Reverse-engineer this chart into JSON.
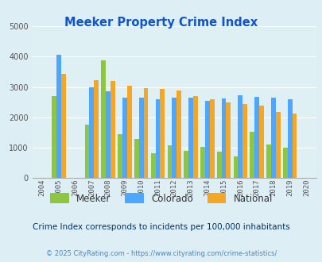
{
  "title": "Meeker Property Crime Index",
  "years": [
    "2004",
    "2005",
    "2006",
    "2007",
    "2008",
    "2009",
    "2010",
    "2011",
    "2012",
    "2013",
    "2014",
    "2015",
    "2016",
    "2017",
    "2018",
    "2019",
    "2020"
  ],
  "meeker": [
    null,
    2700,
    null,
    1750,
    3875,
    1450,
    1300,
    825,
    1075,
    900,
    1025,
    875,
    725,
    1525,
    1100,
    1000,
    null
  ],
  "colorado": [
    null,
    4050,
    null,
    3000,
    2850,
    2650,
    2650,
    2600,
    2650,
    2650,
    2550,
    2625,
    2725,
    2675,
    2650,
    2600,
    null
  ],
  "national": [
    null,
    3425,
    null,
    3225,
    3200,
    3050,
    2950,
    2925,
    2875,
    2700,
    2600,
    2500,
    2450,
    2375,
    2175,
    2125,
    null
  ],
  "meeker_color": "#8dc63f",
  "colorado_color": "#4da6ff",
  "national_color": "#f5a623",
  "plot_bg": "#dff0f5",
  "fig_bg": "#deeef5",
  "white_bg": "#ffffff",
  "ylim": [
    0,
    5000
  ],
  "yticks": [
    0,
    1000,
    2000,
    3000,
    4000,
    5000
  ],
  "legend_labels": [
    "Meeker",
    "Colorado",
    "National"
  ],
  "subtitle": "Crime Index corresponds to incidents per 100,000 inhabitants",
  "footer": "© 2025 CityRating.com - https://www.cityrating.com/crime-statistics/",
  "title_color": "#1155cc",
  "subtitle_color": "#003366",
  "footer_color": "#4488cc",
  "bar_width": 0.28
}
